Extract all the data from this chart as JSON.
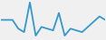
{
  "x": [
    0,
    1,
    2,
    3,
    4,
    5,
    6,
    7,
    8,
    9,
    10,
    11,
    12,
    13,
    14,
    15,
    16,
    17,
    18
  ],
  "y": [
    5.5,
    5.5,
    5.5,
    3.0,
    2.0,
    10.5,
    1.0,
    3.5,
    3.0,
    2.5,
    7.5,
    1.0,
    3.0,
    2.5,
    2.0,
    3.5,
    5.0,
    6.5,
    5.5
  ],
  "line_color": "#3399cc",
  "bg_color": "#f0f0f0",
  "linewidth": 1.3
}
